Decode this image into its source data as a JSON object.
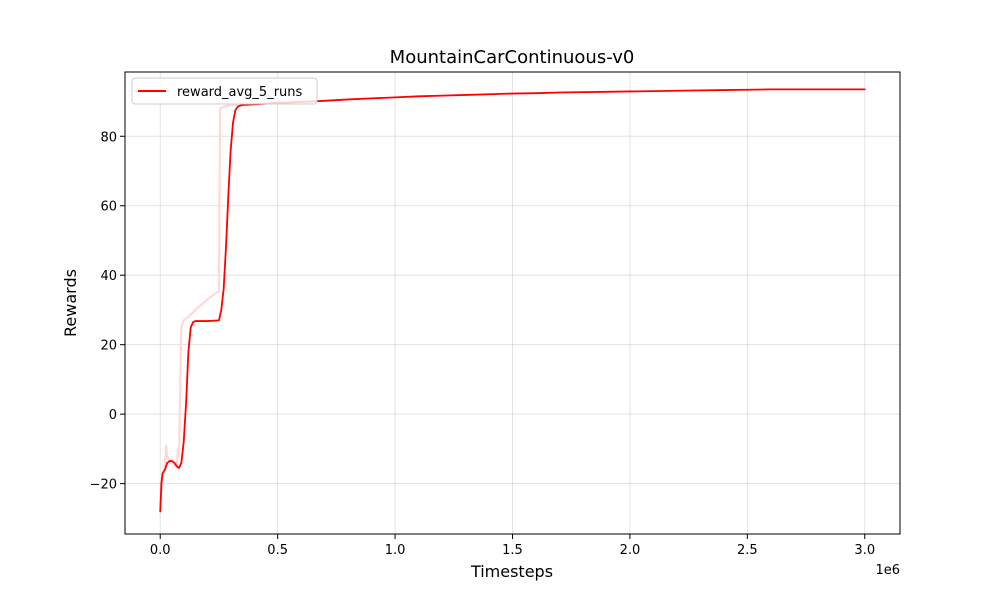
{
  "chart_data": {
    "type": "line",
    "title": "MountainCarContinuous-v0",
    "xlabel": "Timesteps",
    "ylabel": "Rewards",
    "x_offset_label": "1e6",
    "xlim": [
      -0.15,
      3.15
    ],
    "ylim": [
      -34.5,
      98.5
    ],
    "x_ticks": [
      0.0,
      0.5,
      1.0,
      1.5,
      2.0,
      2.5,
      3.0
    ],
    "x_tick_labels": [
      "0.0",
      "0.5",
      "1.0",
      "1.5",
      "2.0",
      "2.5",
      "3.0"
    ],
    "y_ticks": [
      -20,
      0,
      20,
      40,
      60,
      80
    ],
    "y_tick_labels": [
      "−20",
      "0",
      "20",
      "40",
      "60",
      "80"
    ],
    "grid": true,
    "legend_position": "top-left",
    "series": [
      {
        "name": "reward_avg_5_runs",
        "color": "#ff0000",
        "x": [
          0.0,
          0.005,
          0.01,
          0.02,
          0.03,
          0.04,
          0.05,
          0.06,
          0.07,
          0.08,
          0.09,
          0.1,
          0.11,
          0.12,
          0.13,
          0.14,
          0.15,
          0.2,
          0.25,
          0.26,
          0.27,
          0.28,
          0.29,
          0.3,
          0.31,
          0.32,
          0.33,
          0.34,
          0.35,
          0.4,
          0.5,
          0.6,
          0.7,
          0.8,
          0.9,
          1.0,
          1.1,
          1.2,
          1.3,
          1.4,
          1.5,
          1.6,
          1.7,
          1.8,
          1.9,
          2.0,
          2.1,
          2.2,
          2.3,
          2.4,
          2.5,
          2.6,
          2.7,
          2.8,
          2.9,
          3.0
        ],
        "y": [
          -28,
          -20,
          -17,
          -16,
          -14,
          -13.5,
          -13.5,
          -14,
          -15,
          -15.5,
          -14,
          -8,
          3,
          18,
          25,
          26.5,
          26.8,
          26.8,
          27,
          30,
          36,
          48,
          63,
          76,
          84,
          87.5,
          88.5,
          88.8,
          89,
          89.2,
          89.6,
          89.9,
          90.2,
          90.6,
          90.9,
          91.2,
          91.5,
          91.7,
          91.9,
          92.1,
          92.3,
          92.4,
          92.6,
          92.7,
          92.8,
          92.9,
          93.0,
          93.1,
          93.2,
          93.3,
          93.4,
          93.5,
          93.5,
          93.5,
          93.5,
          93.5
        ]
      },
      {
        "name": "",
        "color": "#ffd8d8",
        "x": [
          0.0,
          0.01,
          0.02,
          0.025,
          0.03,
          0.04,
          0.05,
          0.06,
          0.07,
          0.075,
          0.08,
          0.09,
          0.1,
          0.12,
          0.15,
          0.2,
          0.25,
          0.255,
          0.27,
          0.3,
          0.35,
          0.4
        ],
        "y": [
          -26,
          -18,
          -15,
          -9,
          -12,
          -14,
          -13,
          -14.5,
          -15,
          -10,
          -12,
          25,
          27,
          28,
          30,
          33,
          35.5,
          88,
          88.5,
          89,
          89,
          89.2
        ]
      }
    ]
  }
}
